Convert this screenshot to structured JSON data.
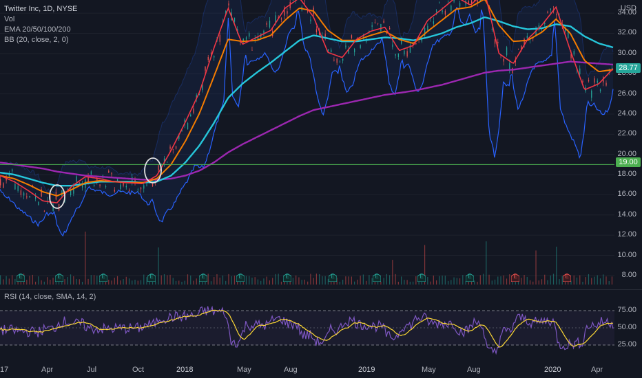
{
  "header": {
    "symbol": "Twitter Inc, 1D, NYSE",
    "vol": "Vol",
    "ema": "EMA 20/50/100/200",
    "bb": "BB (20, close, 2, 0)"
  },
  "rsi_legend": "RSI (14, close, SMA, 14, 2)",
  "currency": "USD",
  "last_price": "28.77",
  "support_price": "19.00",
  "colors": {
    "background": "#131722",
    "up": "#26a69a",
    "down": "#ef5350",
    "ema20": "#f23645",
    "ema50": "#f57c00",
    "ema100": "#26c6da",
    "ema200": "#9c27b0",
    "bb": "#2962ff",
    "rsi": "#7e57c2",
    "rsi_ma": "#fdd835",
    "support": "#4caf50"
  },
  "chart_data": {
    "type": "line",
    "y_axis_ticks": [
      "34.00",
      "32.00",
      "30.00",
      "28.00",
      "26.00",
      "24.00",
      "22.00",
      "20.00",
      "18.00",
      "16.00",
      "14.00",
      "12.00",
      "10.00",
      "8.00"
    ],
    "ylim": [
      6.7,
      35.3
    ],
    "x_axis_ticks": [
      "17",
      "Apr",
      "Jul",
      "Oct",
      "2018",
      "May",
      "Aug",
      "2019",
      "May",
      "Aug",
      "2020",
      "Apr"
    ],
    "rsi_ticks": [
      "75.00",
      "50.00",
      "25.00"
    ],
    "rsi_range": [
      0,
      100
    ],
    "horizontal_line": 19.0,
    "earnings_markers": [
      "E",
      "E",
      "E",
      "E",
      "E",
      "E",
      "E",
      "E",
      "E",
      "E",
      "E",
      "E",
      "E"
    ],
    "series": [
      {
        "values": [
          17.9,
          17.3,
          16.4,
          15.4,
          15.2,
          16.8,
          17.8,
          17.6,
          17.3,
          17.2,
          17.1,
          17.9,
          20.4,
          23.2,
          26.2,
          30.5,
          34.5,
          30.9,
          31.6,
          32.3,
          34.5,
          35.5,
          33.6,
          30.1,
          29.6,
          31.4,
          32.2,
          32.6,
          30.3,
          30.8,
          33.3,
          34.4,
          35.6,
          34.8,
          36.1,
          30.0,
          29.0,
          31.4,
          32.8,
          34.6,
          30.3,
          26.4,
          27.0,
          28.5
        ]
      },
      {
        "values": [
          17.9,
          17.6,
          17.0,
          16.3,
          15.9,
          16.5,
          17.2,
          17.4,
          17.3,
          17.2,
          17.2,
          17.6,
          19.0,
          21.3,
          24.1,
          27.7,
          31.4,
          31.2,
          31.3,
          31.8,
          33.3,
          34.5,
          34.2,
          32.3,
          31.3,
          31.3,
          31.8,
          32.2,
          31.4,
          31.0,
          32.2,
          33.3,
          34.4,
          34.6,
          35.4,
          32.8,
          31.2,
          31.3,
          32.1,
          33.4,
          32.0,
          29.3,
          28.2,
          28.4
        ]
      },
      {
        "values": [
          18.2,
          18.0,
          17.6,
          17.2,
          16.9,
          16.9,
          17.1,
          17.3,
          17.3,
          17.3,
          17.2,
          17.3,
          17.9,
          19.2,
          20.9,
          23.1,
          25.6,
          27.0,
          28.1,
          29.1,
          30.2,
          31.3,
          31.8,
          31.5,
          31.2,
          31.2,
          31.4,
          31.6,
          31.5,
          31.3,
          31.6,
          32.0,
          32.6,
          33.0,
          33.6,
          33.2,
          32.7,
          32.4,
          32.5,
          32.9,
          32.7,
          31.7,
          31.0,
          30.6
        ]
      },
      {
        "values": [
          19.2,
          19.0,
          18.8,
          18.6,
          18.3,
          18.1,
          17.9,
          17.8,
          17.7,
          17.6,
          17.5,
          17.5,
          17.6,
          17.9,
          18.4,
          19.2,
          20.2,
          21.0,
          21.7,
          22.4,
          23.1,
          23.8,
          24.4,
          24.7,
          25.0,
          25.3,
          25.6,
          25.9,
          26.1,
          26.3,
          26.6,
          26.9,
          27.3,
          27.7,
          28.1,
          28.3,
          28.4,
          28.6,
          28.8,
          29.0,
          29.2,
          29.1,
          29.0,
          28.9
        ]
      }
    ]
  }
}
